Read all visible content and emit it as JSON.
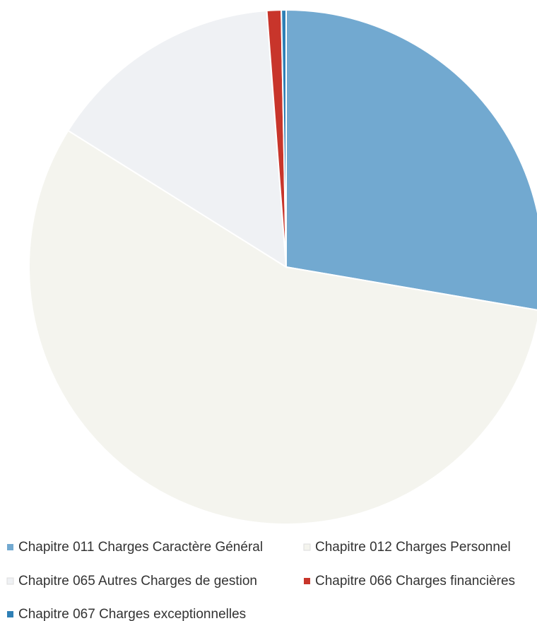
{
  "chart_data": {
    "type": "pie",
    "categories": [
      "Chapitre 011 Charges Caractère Général",
      "Chapitre 012 Charges Personnel",
      "Chapitre 065 Autres Charges de gestion",
      "Chapitre 066 Charges financières",
      "Chapitre 067 Charges exceptionnelles"
    ],
    "values": [
      27.7,
      56.2,
      14.9,
      0.9,
      0.3
    ],
    "colors": [
      "#72a9d0",
      "#f4f4ee",
      "#eff1f4",
      "#c8352b",
      "#2f80b6"
    ]
  }
}
